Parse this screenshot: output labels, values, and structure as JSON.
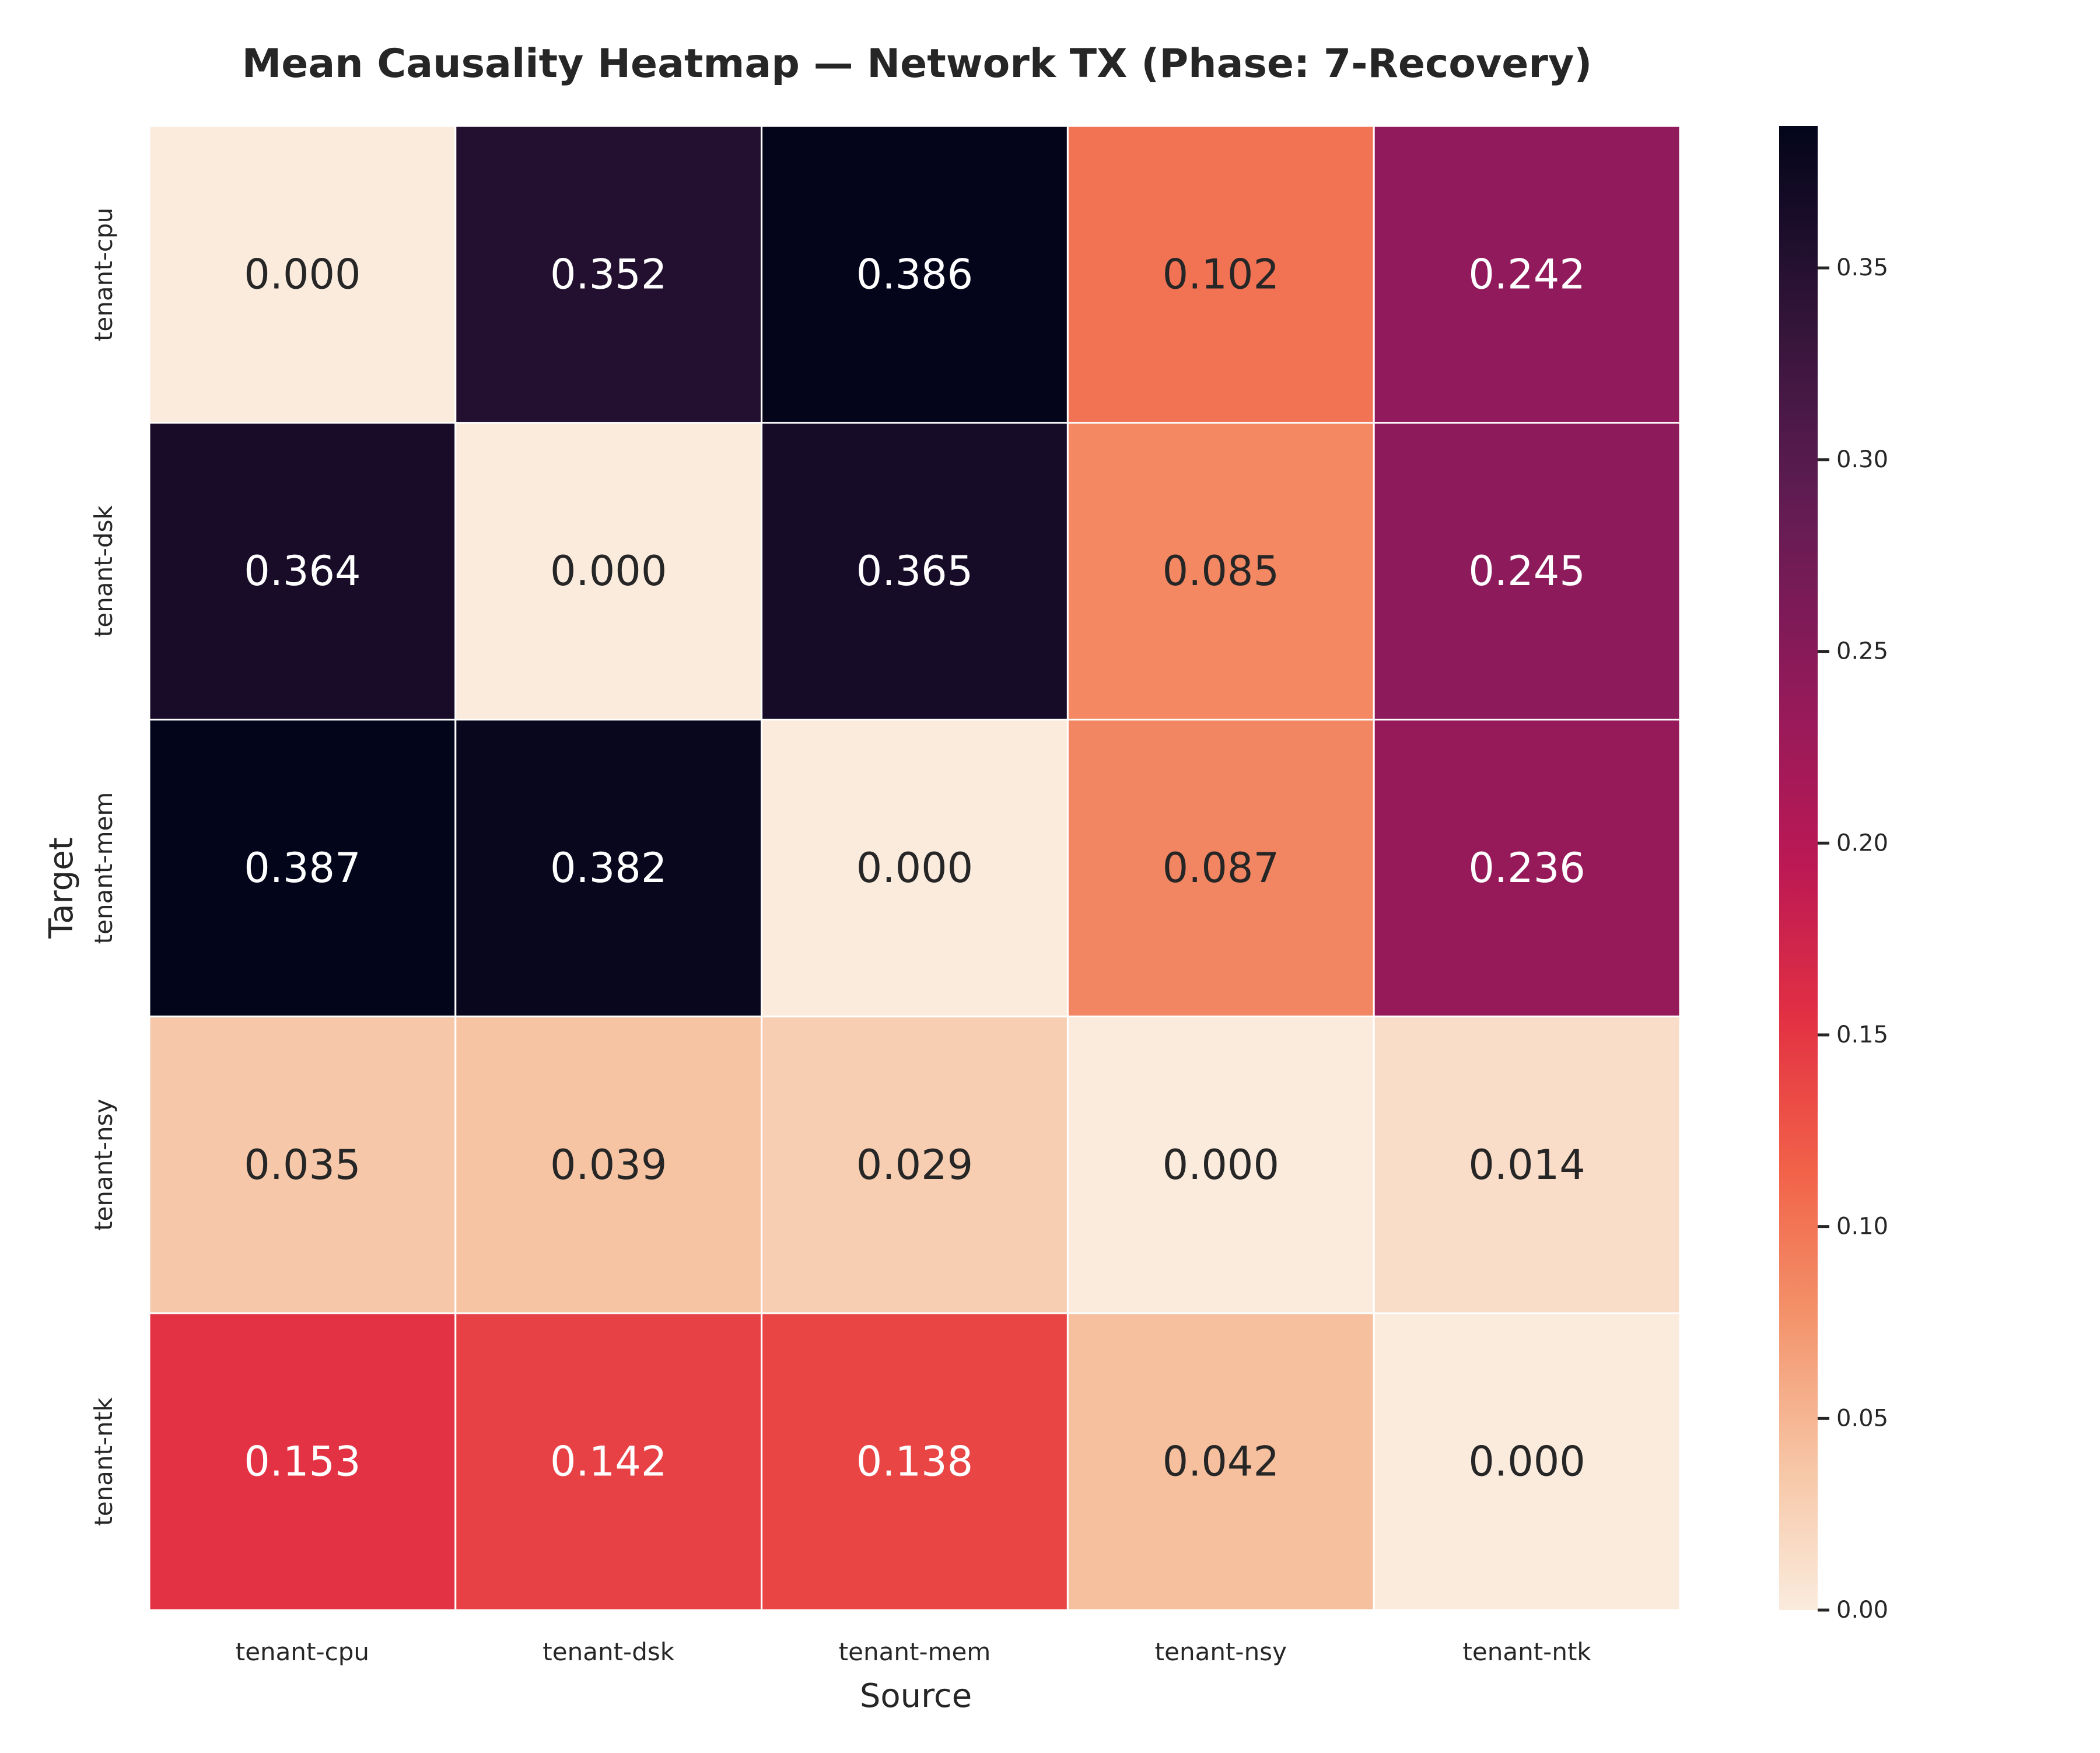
{
  "chart_data": {
    "type": "heatmap",
    "title": "Mean Causality Heatmap — Network TX (Phase: 7-Recovery)",
    "xlabel": "Source",
    "ylabel": "Target",
    "x_categories": [
      "tenant-cpu",
      "tenant-dsk",
      "tenant-mem",
      "tenant-nsy",
      "tenant-ntk"
    ],
    "y_categories": [
      "tenant-cpu",
      "tenant-dsk",
      "tenant-mem",
      "tenant-nsy",
      "tenant-ntk"
    ],
    "values": [
      [
        0.0,
        0.352,
        0.386,
        0.102,
        0.242
      ],
      [
        0.364,
        0.0,
        0.365,
        0.085,
        0.245
      ],
      [
        0.387,
        0.382,
        0.0,
        0.087,
        0.236
      ],
      [
        0.035,
        0.039,
        0.029,
        0.0,
        0.014
      ],
      [
        0.153,
        0.142,
        0.138,
        0.042,
        0.0
      ]
    ],
    "cell_labels": [
      [
        "0.000",
        "0.352",
        "0.386",
        "0.102",
        "0.242"
      ],
      [
        "0.364",
        "0.000",
        "0.365",
        "0.085",
        "0.245"
      ],
      [
        "0.387",
        "0.382",
        "0.000",
        "0.087",
        "0.236"
      ],
      [
        "0.035",
        "0.039",
        "0.029",
        "0.000",
        "0.014"
      ],
      [
        "0.153",
        "0.142",
        "0.138",
        "0.042",
        "0.000"
      ]
    ],
    "colorbar": {
      "range": [
        0.0,
        0.387
      ],
      "ticks": [
        0.0,
        0.05,
        0.1,
        0.15,
        0.2,
        0.25,
        0.3,
        0.35
      ],
      "tick_labels": [
        "0.00",
        "0.05",
        "0.10",
        "0.15",
        "0.20",
        "0.25",
        "0.30",
        "0.35"
      ]
    },
    "colormap": "rocket_r",
    "grid": false
  }
}
